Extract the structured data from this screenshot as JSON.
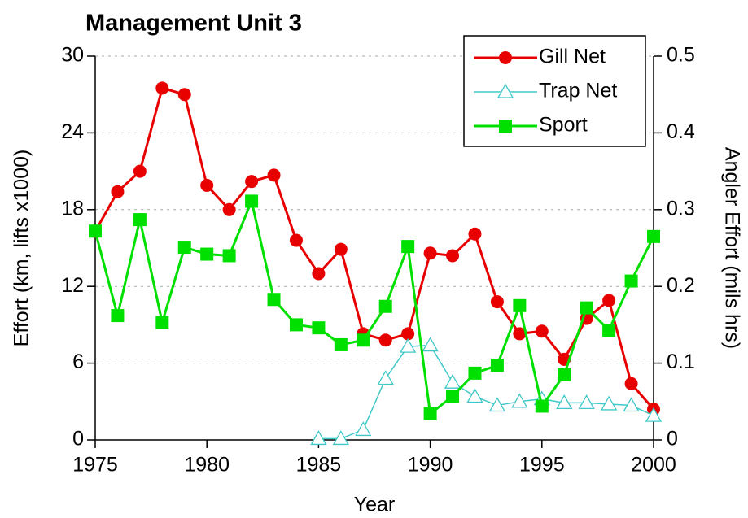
{
  "chart_data": {
    "type": "line",
    "title": "Management Unit 3",
    "x_label": "Year",
    "y_label": "Effort (km, lifts x1000)",
    "y2_label": "Angler Effort (mils hrs)",
    "x": [
      1975,
      1976,
      1977,
      1978,
      1979,
      1980,
      1981,
      1982,
      1983,
      1984,
      1985,
      1986,
      1987,
      1988,
      1989,
      1990,
      1991,
      1992,
      1993,
      1994,
      1995,
      1996,
      1997,
      1998,
      1999,
      2000
    ],
    "xlim": [
      1975,
      2000
    ],
    "xticks": [
      1975,
      1980,
      1985,
      1990,
      1995,
      2000
    ],
    "ylim": [
      0,
      30
    ],
    "yticks": [
      0,
      6,
      12,
      18,
      24,
      30
    ],
    "y2lim": [
      0,
      0.5
    ],
    "y2ticks": [
      0,
      0.1,
      0.2,
      0.3,
      0.4,
      0.5
    ],
    "grid": true,
    "legend": "upper right",
    "series": [
      {
        "name": "Gill Net",
        "color": "#e80000",
        "marker": "circle",
        "values": [
          16.3,
          19.4,
          21.0,
          27.5,
          27.0,
          19.9,
          18.0,
          20.2,
          20.7,
          15.6,
          13.0,
          14.9,
          8.3,
          7.8,
          8.3,
          14.6,
          14.4,
          16.1,
          10.8,
          8.3,
          8.5,
          6.3,
          9.5,
          10.9,
          4.4,
          2.4
        ]
      },
      {
        "name": "Trap Net",
        "color": "#40c8c8",
        "marker": "open-triangle",
        "values": [
          null,
          null,
          null,
          null,
          null,
          null,
          null,
          null,
          null,
          null,
          0.1,
          0.1,
          0.8,
          4.8,
          7.3,
          7.4,
          4.5,
          3.4,
          2.7,
          3.0,
          3.2,
          2.9,
          2.9,
          2.8,
          2.7,
          1.9
        ]
      },
      {
        "name": "Sport",
        "color": "#00e000",
        "marker": "square",
        "axis": "y2",
        "values": [
          0.272,
          0.162,
          0.287,
          0.153,
          0.251,
          0.242,
          0.24,
          0.311,
          0.183,
          0.15,
          0.146,
          0.124,
          0.13,
          0.174,
          0.252,
          0.034,
          0.057,
          0.087,
          0.097,
          0.175,
          0.044,
          0.085,
          0.172,
          0.143,
          0.207,
          0.265
        ]
      }
    ]
  }
}
